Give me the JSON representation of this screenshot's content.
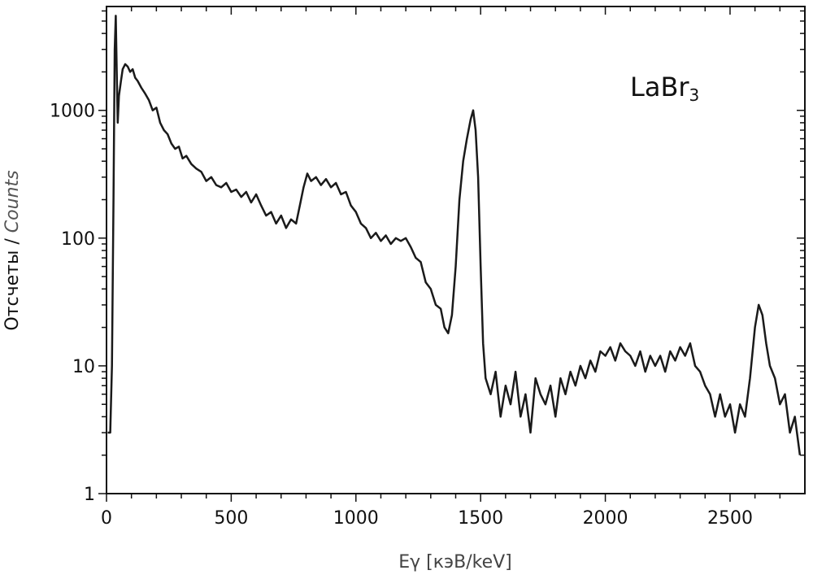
{
  "chart_data": {
    "type": "line",
    "xlabel": "Eγ [кэВ/keV]",
    "ylabel": [
      "Отсчеты /",
      "Counts"
    ],
    "annotation": {
      "text": "LaBr",
      "sub": "3"
    },
    "color": "#1a1a1a",
    "log_y": true,
    "xlim": [
      0,
      2800
    ],
    "xticks": [
      0,
      500,
      1000,
      1500,
      2000,
      2500
    ],
    "xminor_ticks": [
      100,
      200,
      300,
      400,
      600,
      700,
      800,
      900,
      1100,
      1200,
      1300,
      1400,
      1600,
      1700,
      1800,
      1900,
      2100,
      2200,
      2300,
      2400,
      2600,
      2700
    ],
    "ylim": [
      1,
      6500
    ],
    "yticks": [
      1,
      10,
      100,
      1000
    ],
    "yminor_ticks": [
      2,
      3,
      4,
      5,
      6,
      7,
      8,
      9,
      20,
      30,
      40,
      50,
      60,
      70,
      80,
      90,
      200,
      300,
      400,
      500,
      600,
      700,
      800,
      900,
      2000,
      3000,
      4000,
      5000,
      6000
    ],
    "x": [
      5,
      15,
      22,
      28,
      33,
      37,
      41,
      45,
      50,
      58,
      65,
      75,
      85,
      95,
      105,
      115,
      125,
      140,
      155,
      170,
      185,
      200,
      215,
      230,
      245,
      260,
      275,
      290,
      305,
      320,
      340,
      360,
      380,
      400,
      420,
      440,
      460,
      480,
      500,
      520,
      540,
      560,
      580,
      600,
      620,
      640,
      660,
      680,
      700,
      720,
      740,
      760,
      775,
      790,
      805,
      820,
      840,
      860,
      880,
      900,
      920,
      940,
      960,
      980,
      1000,
      1020,
      1040,
      1060,
      1080,
      1100,
      1120,
      1140,
      1160,
      1180,
      1200,
      1220,
      1240,
      1260,
      1280,
      1300,
      1320,
      1340,
      1355,
      1370,
      1385,
      1400,
      1415,
      1430,
      1445,
      1460,
      1470,
      1480,
      1490,
      1500,
      1510,
      1520,
      1540,
      1560,
      1580,
      1600,
      1620,
      1640,
      1660,
      1680,
      1700,
      1720,
      1740,
      1760,
      1780,
      1800,
      1820,
      1840,
      1860,
      1880,
      1900,
      1920,
      1940,
      1960,
      1980,
      2000,
      2020,
      2040,
      2060,
      2080,
      2100,
      2120,
      2140,
      2160,
      2180,
      2200,
      2220,
      2240,
      2260,
      2280,
      2300,
      2320,
      2340,
      2360,
      2380,
      2400,
      2420,
      2440,
      2460,
      2480,
      2500,
      2520,
      2540,
      2560,
      2580,
      2600,
      2615,
      2630,
      2645,
      2660,
      2680,
      2700,
      2720,
      2740,
      2760,
      2780
    ],
    "values": [
      3,
      3,
      10,
      200,
      3000,
      5500,
      2000,
      800,
      1300,
      1700,
      2100,
      2300,
      2200,
      2000,
      2100,
      1800,
      1700,
      1500,
      1350,
      1200,
      1000,
      1050,
      800,
      700,
      650,
      550,
      500,
      520,
      420,
      440,
      380,
      350,
      330,
      280,
      300,
      260,
      250,
      270,
      230,
      240,
      210,
      230,
      190,
      220,
      180,
      150,
      160,
      130,
      150,
      120,
      140,
      130,
      180,
      250,
      320,
      280,
      300,
      260,
      290,
      250,
      270,
      220,
      230,
      180,
      160,
      130,
      120,
      100,
      110,
      95,
      105,
      90,
      100,
      95,
      100,
      85,
      70,
      65,
      45,
      40,
      30,
      28,
      20,
      18,
      25,
      60,
      200,
      400,
      600,
      850,
      1000,
      700,
      300,
      60,
      15,
      8,
      6,
      9,
      4,
      7,
      5,
      9,
      4,
      6,
      3,
      8,
      6,
      5,
      7,
      4,
      8,
      6,
      9,
      7,
      10,
      8,
      11,
      9,
      13,
      12,
      14,
      11,
      15,
      13,
      12,
      10,
      13,
      9,
      12,
      10,
      12,
      9,
      13,
      11,
      14,
      12,
      15,
      10,
      9,
      7,
      6,
      4,
      6,
      4,
      5,
      3,
      5,
      4,
      8,
      20,
      30,
      25,
      15,
      10,
      8,
      5,
      6,
      3,
      4,
      2
    ]
  }
}
